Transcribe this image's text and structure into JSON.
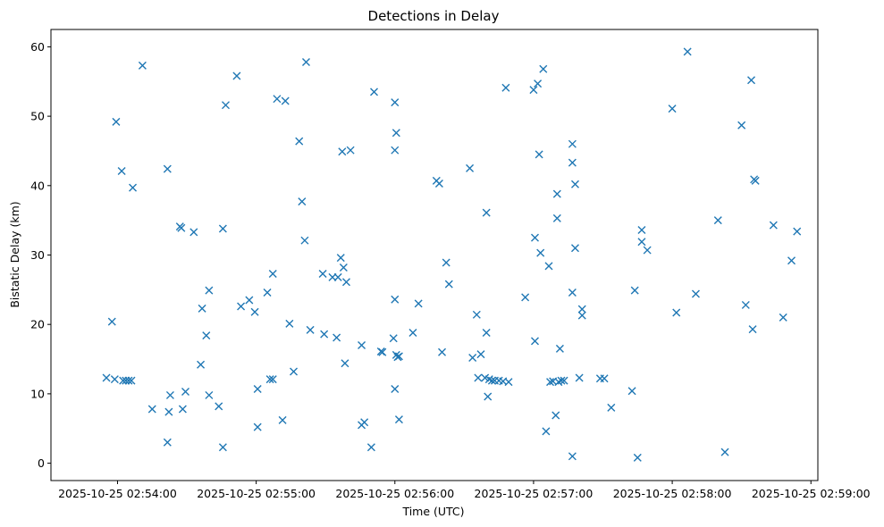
{
  "chart_data": {
    "type": "scatter",
    "title": "Detections in Delay",
    "xlabel": "Time (UTC)",
    "ylabel": "Bistatic Delay (km)",
    "marker": "x",
    "color": "#1f77b4",
    "x_unit": "minutes after 2025-10-25 02:54:00",
    "xlim": [
      -0.48,
      5.05
    ],
    "ylim": [
      -2.5,
      62.5
    ],
    "x_ticks": [
      {
        "value": 0,
        "label": "2025-10-25 02:54:00"
      },
      {
        "value": 1,
        "label": "2025-10-25 02:55:00"
      },
      {
        "value": 2,
        "label": "2025-10-25 02:56:00"
      },
      {
        "value": 3,
        "label": "2025-10-25 02:57:00"
      },
      {
        "value": 4,
        "label": "2025-10-25 02:58:00"
      },
      {
        "value": 5,
        "label": "2025-10-25 02:59:00"
      }
    ],
    "y_ticks": [
      {
        "value": 0,
        "label": "0"
      },
      {
        "value": 10,
        "label": "10"
      },
      {
        "value": 20,
        "label": "20"
      },
      {
        "value": 30,
        "label": "30"
      },
      {
        "value": 40,
        "label": "40"
      },
      {
        "value": 50,
        "label": "50"
      },
      {
        "value": 60,
        "label": "60"
      }
    ],
    "points": [
      [
        -0.08,
        12.3
      ],
      [
        -0.04,
        20.4
      ],
      [
        -0.02,
        12.1
      ],
      [
        -0.01,
        49.2
      ],
      [
        0.03,
        42.1
      ],
      [
        0.04,
        11.9
      ],
      [
        0.06,
        11.9
      ],
      [
        0.08,
        11.9
      ],
      [
        0.1,
        11.9
      ],
      [
        0.11,
        39.7
      ],
      [
        0.18,
        57.3
      ],
      [
        0.25,
        7.8
      ],
      [
        0.36,
        42.4
      ],
      [
        0.36,
        3.0
      ],
      [
        0.37,
        7.4
      ],
      [
        0.38,
        9.8
      ],
      [
        0.45,
        34.1
      ],
      [
        0.46,
        33.9
      ],
      [
        0.47,
        7.8
      ],
      [
        0.49,
        10.3
      ],
      [
        0.55,
        33.3
      ],
      [
        0.6,
        14.2
      ],
      [
        0.61,
        22.3
      ],
      [
        0.64,
        18.4
      ],
      [
        0.66,
        24.9
      ],
      [
        0.66,
        9.8
      ],
      [
        0.73,
        8.2
      ],
      [
        0.76,
        33.8
      ],
      [
        0.76,
        2.3
      ],
      [
        0.78,
        51.6
      ],
      [
        0.86,
        55.8
      ],
      [
        0.89,
        22.6
      ],
      [
        0.95,
        23.5
      ],
      [
        0.99,
        21.8
      ],
      [
        1.01,
        10.7
      ],
      [
        1.01,
        5.2
      ],
      [
        1.08,
        24.6
      ],
      [
        1.1,
        12.1
      ],
      [
        1.12,
        12.1
      ],
      [
        1.12,
        27.3
      ],
      [
        1.15,
        52.5
      ],
      [
        1.19,
        6.2
      ],
      [
        1.21,
        52.2
      ],
      [
        1.24,
        20.1
      ],
      [
        1.27,
        13.2
      ],
      [
        1.31,
        46.4
      ],
      [
        1.33,
        37.7
      ],
      [
        1.35,
        32.1
      ],
      [
        1.36,
        57.8
      ],
      [
        1.39,
        19.2
      ],
      [
        1.48,
        27.3
      ],
      [
        1.49,
        18.6
      ],
      [
        1.55,
        26.8
      ],
      [
        1.58,
        18.1
      ],
      [
        1.59,
        26.8
      ],
      [
        1.61,
        29.6
      ],
      [
        1.62,
        44.9
      ],
      [
        1.63,
        28.2
      ],
      [
        1.64,
        14.4
      ],
      [
        1.65,
        26.1
      ],
      [
        1.68,
        45.1
      ],
      [
        1.76,
        17.0
      ],
      [
        1.76,
        5.5
      ],
      [
        1.78,
        5.9
      ],
      [
        1.83,
        2.3
      ],
      [
        1.85,
        53.5
      ],
      [
        1.9,
        16.1
      ],
      [
        1.91,
        16.0
      ],
      [
        1.99,
        18.0
      ],
      [
        2.0,
        52.0
      ],
      [
        2.0,
        45.1
      ],
      [
        2.0,
        23.6
      ],
      [
        2.0,
        10.7
      ],
      [
        2.01,
        47.6
      ],
      [
        2.01,
        15.6
      ],
      [
        2.02,
        15.3
      ],
      [
        2.03,
        15.4
      ],
      [
        2.03,
        6.3
      ],
      [
        2.13,
        18.8
      ],
      [
        2.17,
        23.0
      ],
      [
        2.3,
        40.7
      ],
      [
        2.32,
        40.3
      ],
      [
        2.34,
        16.0
      ],
      [
        2.37,
        28.9
      ],
      [
        2.39,
        25.8
      ],
      [
        2.54,
        42.5
      ],
      [
        2.56,
        15.2
      ],
      [
        2.59,
        21.4
      ],
      [
        2.6,
        12.3
      ],
      [
        2.62,
        15.7
      ],
      [
        2.65,
        12.3
      ],
      [
        2.66,
        36.1
      ],
      [
        2.66,
        18.8
      ],
      [
        2.67,
        9.6
      ],
      [
        2.68,
        12.1
      ],
      [
        2.7,
        11.9
      ],
      [
        2.72,
        11.9
      ],
      [
        2.75,
        11.9
      ],
      [
        2.78,
        11.8
      ],
      [
        2.8,
        54.1
      ],
      [
        2.82,
        11.7
      ],
      [
        2.94,
        23.9
      ],
      [
        3.0,
        53.8
      ],
      [
        3.01,
        32.5
      ],
      [
        3.01,
        17.6
      ],
      [
        3.03,
        54.7
      ],
      [
        3.04,
        44.5
      ],
      [
        3.05,
        30.3
      ],
      [
        3.07,
        56.8
      ],
      [
        3.09,
        4.6
      ],
      [
        3.11,
        28.4
      ],
      [
        3.12,
        11.7
      ],
      [
        3.14,
        11.8
      ],
      [
        3.16,
        6.9
      ],
      [
        3.17,
        38.8
      ],
      [
        3.17,
        35.3
      ],
      [
        3.18,
        11.7
      ],
      [
        3.19,
        16.5
      ],
      [
        3.2,
        11.9
      ],
      [
        3.22,
        11.9
      ],
      [
        3.28,
        46.0
      ],
      [
        3.28,
        43.3
      ],
      [
        3.28,
        24.6
      ],
      [
        3.28,
        1.0
      ],
      [
        3.3,
        40.2
      ],
      [
        3.3,
        31.0
      ],
      [
        3.33,
        12.3
      ],
      [
        3.35,
        22.2
      ],
      [
        3.35,
        21.3
      ],
      [
        3.48,
        12.2
      ],
      [
        3.51,
        12.2
      ],
      [
        3.56,
        8.0
      ],
      [
        3.71,
        10.4
      ],
      [
        3.73,
        24.9
      ],
      [
        3.75,
        0.8
      ],
      [
        3.78,
        33.6
      ],
      [
        3.78,
        31.9
      ],
      [
        3.82,
        30.7
      ],
      [
        4.0,
        51.1
      ],
      [
        4.03,
        21.7
      ],
      [
        4.11,
        59.3
      ],
      [
        4.17,
        24.4
      ],
      [
        4.33,
        35.0
      ],
      [
        4.38,
        1.6
      ],
      [
        4.5,
        48.7
      ],
      [
        4.53,
        22.8
      ],
      [
        4.57,
        55.2
      ],
      [
        4.58,
        19.3
      ],
      [
        4.59,
        40.9
      ],
      [
        4.6,
        40.7
      ],
      [
        4.73,
        34.3
      ],
      [
        4.8,
        21.0
      ],
      [
        4.86,
        29.2
      ],
      [
        4.9,
        33.4
      ]
    ]
  }
}
